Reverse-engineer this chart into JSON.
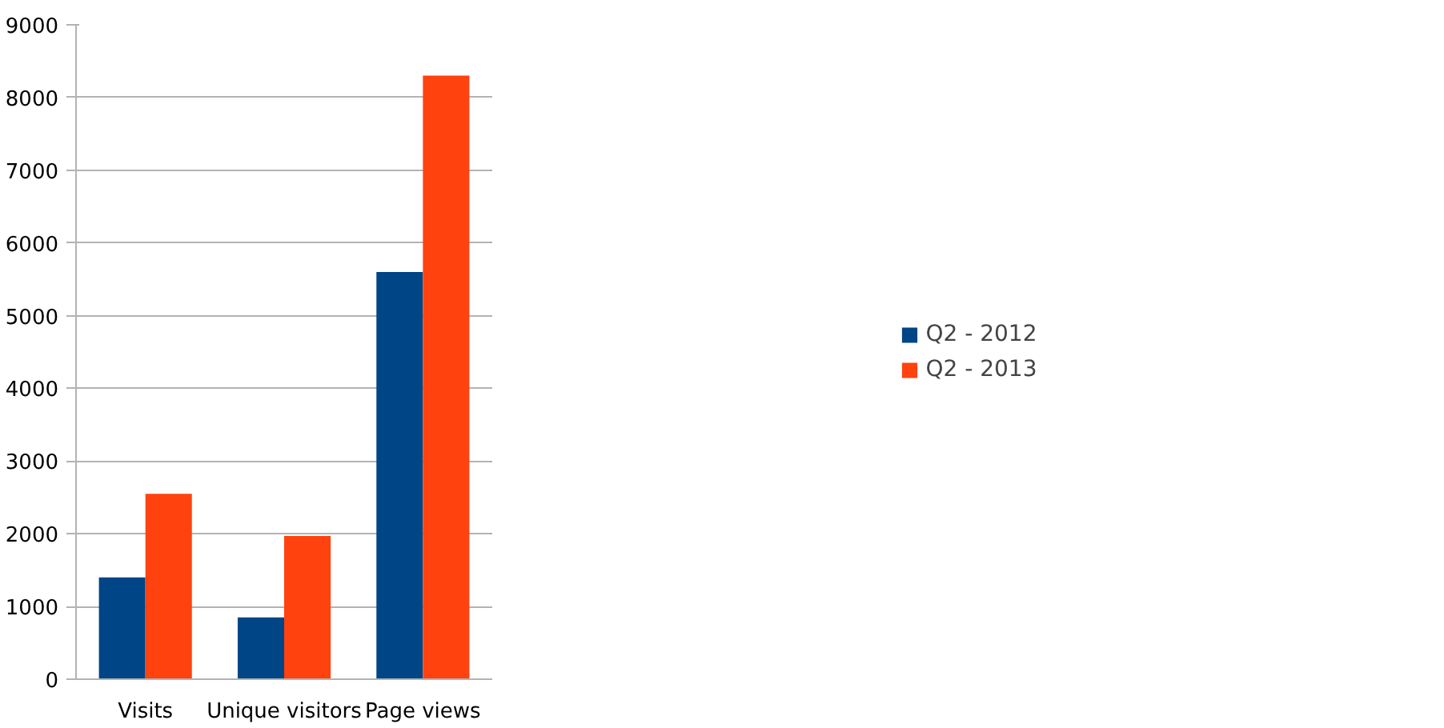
{
  "chart_data": {
    "type": "bar",
    "categories": [
      "Visits",
      "Unique visitors",
      "Page views"
    ],
    "series": [
      {
        "name": "Q2 - 2012",
        "color": "#004586",
        "values": [
          1400,
          850,
          5600
        ]
      },
      {
        "name": "Q2 - 2013",
        "color": "#ff420e",
        "values": [
          2550,
          1970,
          8300
        ]
      }
    ],
    "ylim": [
      0,
      9000
    ],
    "yticks": [
      0,
      1000,
      2000,
      3000,
      4000,
      5000,
      6000,
      7000,
      8000,
      9000
    ],
    "grid": "y",
    "legend": "right"
  }
}
